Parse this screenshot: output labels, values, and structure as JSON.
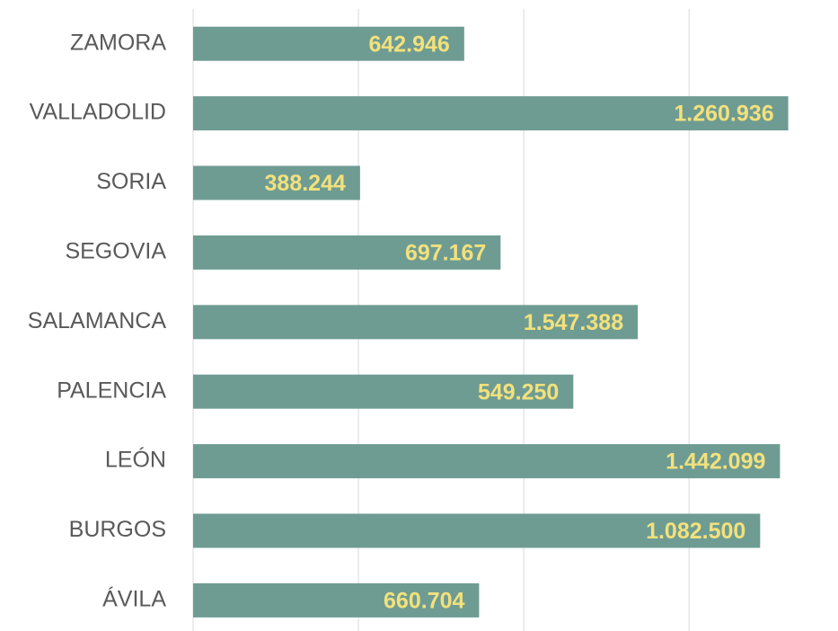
{
  "chart_data": {
    "type": "barh",
    "categories": [
      "ZAMORA",
      "VALLADOLID",
      "SORIA",
      "SEGOVIA",
      "SALAMANCA",
      "PALENCIA",
      "LEÓN",
      "BURGOS",
      "ÁVILA"
    ],
    "values": [
      1.64,
      3.6,
      1.01,
      1.86,
      2.69,
      2.3,
      3.55,
      3.43,
      1.73
    ],
    "data_labels": [
      "642.946",
      "1.260.936",
      "388.244",
      "697.167",
      "1.547.388",
      "549.250",
      "1.442.099",
      "1.082.500",
      "660.704"
    ],
    "color": "#6e9c93",
    "xlim": [
      0,
      3.7
    ],
    "xticks": [
      0,
      1,
      2,
      3
    ],
    "grid": true
  }
}
